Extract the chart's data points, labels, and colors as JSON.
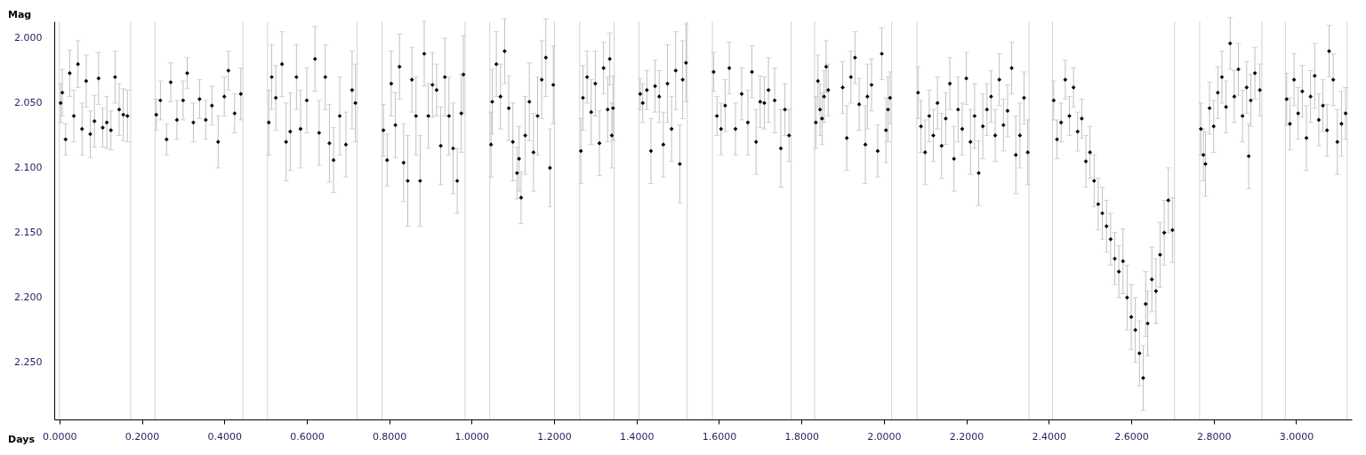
{
  "chart_data": {
    "type": "scatter",
    "xlabel": "Days",
    "ylabel": "Mag",
    "xlim": [
      -0.0125,
      3.135
    ],
    "ylim": [
      2.294,
      1.987
    ],
    "xticks": [
      {
        "value": 0,
        "label": "0.0000"
      },
      {
        "value": 0.2,
        "label": "0.2000"
      },
      {
        "value": 0.4,
        "label": "0.4000"
      },
      {
        "value": 0.6,
        "label": "0.6000"
      },
      {
        "value": 0.8,
        "label": "0.8000"
      },
      {
        "value": 1.0,
        "label": "1.0000"
      },
      {
        "value": 1.2,
        "label": "1.2000"
      },
      {
        "value": 1.4,
        "label": "1.4000"
      },
      {
        "value": 1.6,
        "label": "1.6000"
      },
      {
        "value": 1.8,
        "label": "1.8000"
      },
      {
        "value": 2.0,
        "label": "2.0000"
      },
      {
        "value": 2.2,
        "label": "2.2000"
      },
      {
        "value": 2.4,
        "label": "2.4000"
      },
      {
        "value": 2.6,
        "label": "2.6000"
      },
      {
        "value": 2.8,
        "label": "2.8000"
      },
      {
        "value": 3.0,
        "label": "3.0000"
      }
    ],
    "yticks": [
      {
        "value": 2.0,
        "label": "2.000"
      },
      {
        "value": 2.05,
        "label": "2.050"
      },
      {
        "value": 2.1,
        "label": "2.100"
      },
      {
        "value": 2.15,
        "label": "2.150"
      },
      {
        "value": 2.2,
        "label": "2.200"
      },
      {
        "value": 2.25,
        "label": "2.250"
      }
    ],
    "marker": "diamond",
    "ref_lines": [
      {
        "axis": "x",
        "value": 0.0,
        "color": "#d3d3d3"
      },
      {
        "axis": "x",
        "value": 0.173,
        "color": "#d3d3d3"
      },
      {
        "axis": "x",
        "value": 0.232,
        "color": "#d3d3d3"
      },
      {
        "axis": "x",
        "value": 0.445,
        "color": "#d3d3d3"
      },
      {
        "axis": "x",
        "value": 0.505,
        "color": "#d3d3d3"
      },
      {
        "axis": "x",
        "value": 0.722,
        "color": "#d3d3d3"
      },
      {
        "axis": "x",
        "value": 0.783,
        "color": "#d3d3d3"
      },
      {
        "axis": "x",
        "value": 0.984,
        "color": "#d3d3d3"
      },
      {
        "axis": "x",
        "value": 1.044,
        "color": "#d3d3d3"
      },
      {
        "axis": "x",
        "value": 1.201,
        "color": "#d3d3d3"
      },
      {
        "axis": "x",
        "value": 1.262,
        "color": "#d3d3d3"
      },
      {
        "axis": "x",
        "value": 1.346,
        "color": "#d3d3d3"
      },
      {
        "axis": "x",
        "value": 1.406,
        "color": "#d3d3d3"
      },
      {
        "axis": "x",
        "value": 1.523,
        "color": "#d3d3d3"
      },
      {
        "axis": "x",
        "value": 1.584,
        "color": "#d3d3d3"
      },
      {
        "axis": "x",
        "value": 1.775,
        "color": "#d3d3d3"
      },
      {
        "axis": "x",
        "value": 1.832,
        "color": "#d3d3d3"
      },
      {
        "axis": "x",
        "value": 2.019,
        "color": "#d3d3d3"
      },
      {
        "axis": "x",
        "value": 2.08,
        "color": "#d3d3d3"
      },
      {
        "axis": "x",
        "value": 2.352,
        "color": "#d3d3d3"
      },
      {
        "axis": "x",
        "value": 2.409,
        "color": "#d3d3d3"
      },
      {
        "axis": "x",
        "value": 2.705,
        "color": "#d3d3d3"
      },
      {
        "axis": "x",
        "value": 2.766,
        "color": "#d3d3d3"
      },
      {
        "axis": "x",
        "value": 2.917,
        "color": "#d3d3d3"
      },
      {
        "axis": "x",
        "value": 2.974,
        "color": "#d3d3d3"
      },
      {
        "axis": "x",
        "value": 3.124,
        "color": "#d3d3d3"
      }
    ],
    "series": [
      {
        "color": "#000000",
        "x": [
          0.003,
          0.007,
          0.015,
          0.025,
          0.035,
          0.045,
          0.055,
          0.065,
          0.075,
          0.085,
          0.095,
          0.105,
          0.115,
          0.125,
          0.135,
          0.145,
          0.155,
          0.165,
          0.235,
          0.245,
          0.26,
          0.27,
          0.285,
          0.3,
          0.31,
          0.325,
          0.34,
          0.355,
          0.37,
          0.385,
          0.4,
          0.41,
          0.425,
          0.44,
          0.508,
          0.515,
          0.525,
          0.54,
          0.55,
          0.56,
          0.575,
          0.585,
          0.6,
          0.62,
          0.63,
          0.645,
          0.655,
          0.665,
          0.68,
          0.695,
          0.71,
          0.718,
          0.786,
          0.795,
          0.805,
          0.815,
          0.825,
          0.835,
          0.845,
          0.855,
          0.865,
          0.875,
          0.885,
          0.895,
          0.905,
          0.915,
          0.925,
          0.935,
          0.945,
          0.955,
          0.965,
          0.975,
          0.98,
          1.047,
          1.05,
          1.06,
          1.07,
          1.08,
          1.09,
          1.1,
          1.11,
          1.115,
          1.12,
          1.13,
          1.14,
          1.15,
          1.16,
          1.17,
          1.18,
          1.19,
          1.198,
          1.265,
          1.27,
          1.28,
          1.29,
          1.3,
          1.31,
          1.32,
          1.33,
          1.335,
          1.34,
          1.343,
          1.409,
          1.415,
          1.425,
          1.435,
          1.445,
          1.455,
          1.465,
          1.475,
          1.485,
          1.495,
          1.505,
          1.512,
          1.52,
          1.587,
          1.595,
          1.605,
          1.615,
          1.625,
          1.64,
          1.655,
          1.67,
          1.68,
          1.69,
          1.7,
          1.71,
          1.72,
          1.735,
          1.75,
          1.76,
          1.77,
          1.835,
          1.84,
          1.845,
          1.85,
          1.855,
          1.86,
          1.865,
          1.9,
          1.91,
          1.92,
          1.93,
          1.94,
          1.955,
          1.96,
          1.97,
          1.985,
          1.995,
          2.005,
          2.01,
          2.015,
          2.083,
          2.09,
          2.1,
          2.11,
          2.12,
          2.13,
          2.14,
          2.15,
          2.16,
          2.17,
          2.18,
          2.19,
          2.2,
          2.21,
          2.22,
          2.23,
          2.24,
          2.25,
          2.26,
          2.27,
          2.28,
          2.29,
          2.3,
          2.31,
          2.32,
          2.33,
          2.34,
          2.349,
          2.412,
          2.42,
          2.43,
          2.44,
          2.45,
          2.46,
          2.47,
          2.48,
          2.49,
          2.5,
          2.51,
          2.52,
          2.53,
          2.54,
          2.55,
          2.56,
          2.57,
          2.58,
          2.59,
          2.6,
          2.61,
          2.62,
          2.629,
          2.635,
          2.64,
          2.65,
          2.66,
          2.67,
          2.68,
          2.69,
          2.7,
          2.769,
          2.775,
          2.78,
          2.79,
          2.8,
          2.81,
          2.82,
          2.83,
          2.84,
          2.85,
          2.86,
          2.87,
          2.88,
          2.885,
          2.89,
          2.9,
          2.912,
          2.977,
          2.985,
          2.995,
          3.005,
          3.015,
          3.025,
          3.035,
          3.045,
          3.055,
          3.065,
          3.075,
          3.08,
          3.09,
          3.1,
          3.11,
          3.12
        ],
        "values": [
          2.05,
          2.042,
          2.078,
          2.027,
          2.06,
          2.02,
          2.07,
          2.033,
          2.074,
          2.064,
          2.031,
          2.069,
          2.065,
          2.071,
          2.03,
          2.055,
          2.059,
          2.06,
          2.059,
          2.048,
          2.078,
          2.034,
          2.063,
          2.048,
          2.027,
          2.065,
          2.047,
          2.063,
          2.052,
          2.08,
          2.045,
          2.025,
          2.058,
          2.043,
          2.065,
          2.03,
          2.046,
          2.02,
          2.08,
          2.072,
          2.03,
          2.07,
          2.048,
          2.016,
          2.073,
          2.03,
          2.081,
          2.094,
          2.06,
          2.082,
          2.04,
          2.05,
          2.071,
          2.094,
          2.035,
          2.067,
          2.022,
          2.096,
          2.11,
          2.032,
          2.06,
          2.11,
          2.012,
          2.06,
          2.036,
          2.04,
          2.083,
          2.03,
          2.06,
          2.085,
          2.11,
          2.058,
          2.028,
          2.082,
          2.049,
          2.02,
          2.045,
          2.01,
          2.054,
          2.08,
          2.104,
          2.093,
          2.123,
          2.075,
          2.049,
          2.088,
          2.06,
          2.032,
          2.015,
          2.1,
          2.036,
          2.087,
          2.046,
          2.03,
          2.057,
          2.035,
          2.081,
          2.023,
          2.055,
          2.016,
          2.075,
          2.054,
          2.043,
          2.05,
          2.04,
          2.087,
          2.037,
          2.045,
          2.082,
          2.035,
          2.07,
          2.025,
          2.097,
          2.032,
          2.019,
          2.026,
          2.06,
          2.07,
          2.052,
          2.023,
          2.07,
          2.043,
          2.065,
          2.026,
          2.08,
          2.049,
          2.05,
          2.04,
          2.048,
          2.085,
          2.055,
          2.075,
          2.065,
          2.033,
          2.055,
          2.062,
          2.045,
          2.022,
          2.04,
          2.038,
          2.077,
          2.03,
          2.015,
          2.051,
          2.082,
          2.045,
          2.036,
          2.087,
          2.012,
          2.071,
          2.055,
          2.046,
          2.042,
          2.068,
          2.088,
          2.06,
          2.075,
          2.05,
          2.083,
          2.062,
          2.035,
          2.093,
          2.055,
          2.07,
          2.031,
          2.08,
          2.06,
          2.104,
          2.068,
          2.055,
          2.045,
          2.075,
          2.032,
          2.067,
          2.056,
          2.023,
          2.09,
          2.075,
          2.046,
          2.088,
          2.048,
          2.078,
          2.065,
          2.032,
          2.06,
          2.038,
          2.072,
          2.062,
          2.095,
          2.088,
          2.11,
          2.128,
          2.135,
          2.145,
          2.155,
          2.17,
          2.18,
          2.172,
          2.2,
          2.215,
          2.225,
          2.243,
          2.262,
          2.205,
          2.22,
          2.186,
          2.195,
          2.167,
          2.15,
          2.125,
          2.148,
          2.07,
          2.09,
          2.097,
          2.054,
          2.068,
          2.042,
          2.03,
          2.053,
          2.004,
          2.045,
          2.024,
          2.06,
          2.038,
          2.091,
          2.048,
          2.027,
          2.04,
          2.047,
          2.066,
          2.032,
          2.058,
          2.041,
          2.077,
          2.045,
          2.029,
          2.063,
          2.052,
          2.071,
          2.01,
          2.032,
          2.08,
          2.066,
          2.058
        ],
        "errors": [
          0.015,
          0.018,
          0.012,
          0.018,
          0.02,
          0.018,
          0.02,
          0.02,
          0.018,
          0.02,
          0.02,
          0.015,
          0.02,
          0.015,
          0.02,
          0.02,
          0.02,
          0.02,
          0.012,
          0.015,
          0.012,
          0.015,
          0.015,
          0.015,
          0.012,
          0.015,
          0.015,
          0.015,
          0.015,
          0.02,
          0.015,
          0.015,
          0.015,
          0.02,
          0.025,
          0.025,
          0.025,
          0.025,
          0.03,
          0.03,
          0.025,
          0.03,
          0.025,
          0.025,
          0.025,
          0.025,
          0.03,
          0.025,
          0.03,
          0.025,
          0.03,
          0.03,
          0.02,
          0.02,
          0.025,
          0.025,
          0.025,
          0.03,
          0.035,
          0.025,
          0.03,
          0.035,
          0.025,
          0.025,
          0.025,
          0.02,
          0.03,
          0.03,
          0.03,
          0.035,
          0.025,
          0.03,
          0.03,
          0.025,
          0.025,
          0.025,
          0.025,
          0.025,
          0.025,
          0.03,
          0.02,
          0.025,
          0.02,
          0.03,
          0.03,
          0.03,
          0.03,
          0.03,
          0.03,
          0.03,
          0.03,
          0.025,
          0.025,
          0.02,
          0.025,
          0.025,
          0.025,
          0.02,
          0.025,
          0.02,
          0.025,
          0.025,
          0.012,
          0.015,
          0.015,
          0.025,
          0.02,
          0.02,
          0.025,
          0.03,
          0.025,
          0.03,
          0.03,
          0.03,
          0.03,
          0.015,
          0.015,
          0.02,
          0.02,
          0.02,
          0.02,
          0.02,
          0.025,
          0.02,
          0.025,
          0.02,
          0.02,
          0.025,
          0.025,
          0.03,
          0.02,
          0.02,
          0.02,
          0.02,
          0.02,
          0.02,
          0.02,
          0.02,
          0.02,
          0.02,
          0.025,
          0.02,
          0.02,
          0.02,
          0.03,
          0.025,
          0.02,
          0.02,
          0.02,
          0.025,
          0.025,
          0.02,
          0.02,
          0.02,
          0.025,
          0.02,
          0.02,
          0.02,
          0.025,
          0.02,
          0.02,
          0.025,
          0.025,
          0.02,
          0.02,
          0.025,
          0.025,
          0.025,
          0.025,
          0.02,
          0.02,
          0.02,
          0.02,
          0.02,
          0.02,
          0.02,
          0.03,
          0.025,
          0.02,
          0.025,
          0.015,
          0.015,
          0.015,
          0.015,
          0.015,
          0.015,
          0.015,
          0.015,
          0.02,
          0.02,
          0.02,
          0.02,
          0.02,
          0.02,
          0.02,
          0.02,
          0.02,
          0.025,
          0.025,
          0.025,
          0.025,
          0.025,
          0.025,
          0.025,
          0.025,
          0.025,
          0.025,
          0.025,
          0.025,
          0.025,
          0.025,
          0.02,
          0.02,
          0.025,
          0.02,
          0.02,
          0.02,
          0.02,
          0.02,
          0.02,
          0.02,
          0.02,
          0.02,
          0.02,
          0.025,
          0.02,
          0.02,
          0.02,
          0.02,
          0.02,
          0.02,
          0.02,
          0.02,
          0.025,
          0.02,
          0.025,
          0.02,
          0.02,
          0.02,
          0.02,
          0.02,
          0.025,
          0.025,
          0.02
        ]
      }
    ]
  }
}
